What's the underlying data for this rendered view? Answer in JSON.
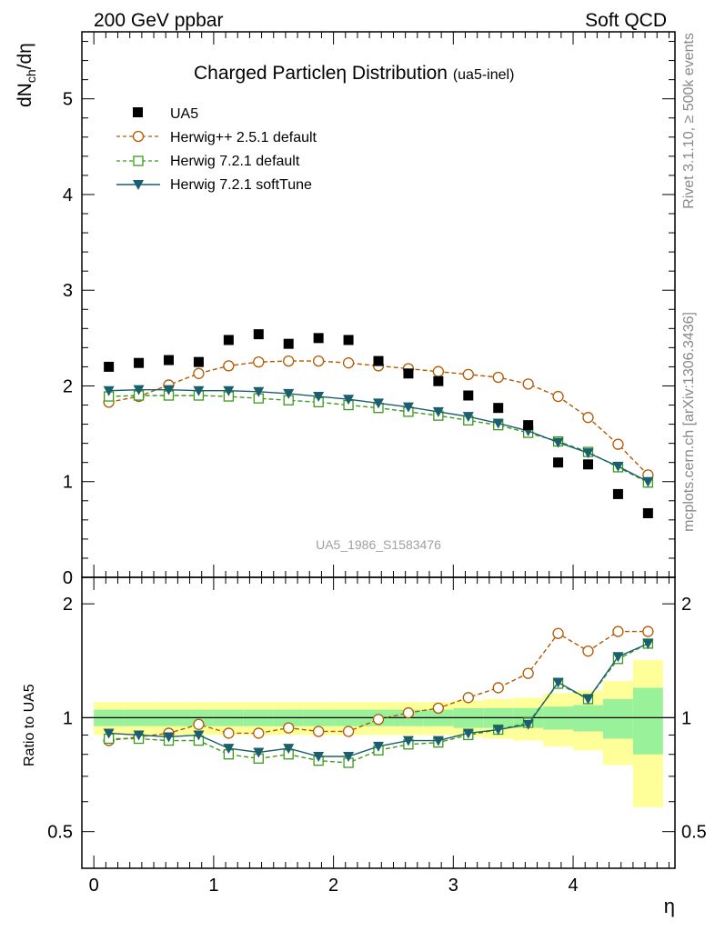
{
  "header": {
    "left": "200 GeV ppbar",
    "right": "Soft QCD"
  },
  "side": {
    "rivet": "Rivet 3.1.10, ≥ 500k events",
    "mcplots": "mcplots.cern.ch [arXiv:1306.3436]"
  },
  "watermark": "UA5_1986_S1583476",
  "chart_data": {
    "type": "scatter",
    "title": "Charged Particleη Distribution",
    "title_suffix": "(ua5-inel)",
    "ylabel_main": "dN",
    "ylabel_sub": "ch",
    "ylabel_tail": "/dη",
    "ylabel_ratio": "Ratio to UA5",
    "xlabel": "η",
    "xlim": [
      -0.1,
      4.85
    ],
    "ylim_main": [
      0,
      5.7
    ],
    "ylim_ratio": [
      0.4,
      2.35
    ],
    "x_ticks": [
      "0",
      "1",
      "2",
      "3",
      "4"
    ],
    "y_ticks_main": [
      "0",
      "1",
      "2",
      "3",
      "4",
      "5"
    ],
    "y_ticks_ratio": [
      "0.5",
      "1",
      "2"
    ],
    "x": [
      0.125,
      0.375,
      0.625,
      0.875,
      1.125,
      1.375,
      1.625,
      1.875,
      2.125,
      2.375,
      2.625,
      2.875,
      3.125,
      3.375,
      3.625,
      3.875,
      4.125,
      4.375,
      4.625
    ],
    "series": [
      {
        "name": "UA5",
        "style": "data",
        "values": [
          2.2,
          2.24,
          2.27,
          2.25,
          2.48,
          2.54,
          2.44,
          2.5,
          2.48,
          2.26,
          2.13,
          2.05,
          1.9,
          1.77,
          1.59,
          1.2,
          1.18,
          0.87,
          0.67
        ],
        "ratio": [
          1,
          1,
          1,
          1,
          1,
          1,
          1,
          1,
          1,
          1,
          1,
          1,
          1,
          1,
          1,
          1,
          1,
          1,
          1
        ]
      },
      {
        "name": "Herwig++ 2.5.1 default",
        "style": "dash-circle",
        "color": "#b35900",
        "values": [
          1.83,
          1.89,
          2.01,
          2.13,
          2.21,
          2.25,
          2.26,
          2.26,
          2.24,
          2.21,
          2.18,
          2.15,
          2.12,
          2.09,
          2.02,
          1.89,
          1.67,
          1.39,
          1.07
        ],
        "ratio": [
          0.87,
          0.89,
          0.91,
          0.96,
          0.91,
          0.91,
          0.94,
          0.92,
          0.92,
          0.99,
          1.03,
          1.06,
          1.13,
          1.2,
          1.31,
          1.67,
          1.5,
          1.69,
          1.69
        ]
      },
      {
        "name": "Herwig 7.2.1 default",
        "style": "dash-square",
        "color": "#3a9a1a",
        "values": [
          1.89,
          1.9,
          1.9,
          1.9,
          1.89,
          1.87,
          1.85,
          1.83,
          1.8,
          1.77,
          1.73,
          1.69,
          1.64,
          1.59,
          1.51,
          1.42,
          1.31,
          1.15,
          0.99
        ],
        "ratio": [
          0.88,
          0.88,
          0.87,
          0.87,
          0.8,
          0.78,
          0.8,
          0.77,
          0.76,
          0.82,
          0.85,
          0.86,
          0.9,
          0.93,
          0.97,
          1.23,
          1.12,
          1.43,
          1.57
        ]
      },
      {
        "name": "Herwig 7.2.1 softTune",
        "style": "solid-triangle",
        "color": "#1b5e6e",
        "values": [
          1.95,
          1.96,
          1.96,
          1.95,
          1.95,
          1.94,
          1.92,
          1.89,
          1.86,
          1.82,
          1.78,
          1.73,
          1.68,
          1.61,
          1.53,
          1.41,
          1.3,
          1.16,
          1.0
        ],
        "ratio": [
          0.91,
          0.9,
          0.89,
          0.9,
          0.83,
          0.81,
          0.83,
          0.79,
          0.79,
          0.84,
          0.87,
          0.87,
          0.91,
          0.93,
          0.96,
          1.24,
          1.12,
          1.45,
          1.57
        ]
      }
    ],
    "band_inner": [
      0.05,
      0.05,
      0.05,
      0.05,
      0.05,
      0.05,
      0.05,
      0.05,
      0.05,
      0.05,
      0.05,
      0.05,
      0.06,
      0.06,
      0.06,
      0.07,
      0.08,
      0.12,
      0.2
    ],
    "band_outer": [
      0.1,
      0.1,
      0.1,
      0.1,
      0.1,
      0.1,
      0.1,
      0.1,
      0.1,
      0.1,
      0.1,
      0.1,
      0.11,
      0.12,
      0.13,
      0.16,
      0.18,
      0.25,
      0.42
    ]
  }
}
